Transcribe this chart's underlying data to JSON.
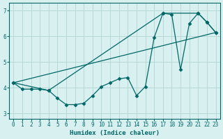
{
  "xlabel": "Humidex (Indice chaleur)",
  "bg_color": "#d8f0f0",
  "grid_color": "#b8d8d8",
  "line_color": "#006666",
  "xlim": [
    -0.5,
    23.5
  ],
  "ylim": [
    2.8,
    7.3
  ],
  "xticks": [
    0,
    1,
    2,
    3,
    4,
    5,
    6,
    7,
    8,
    9,
    10,
    11,
    12,
    13,
    14,
    15,
    16,
    17,
    18,
    19,
    20,
    21,
    22,
    23
  ],
  "yticks": [
    3,
    4,
    5,
    6,
    7
  ],
  "series1_x": [
    0,
    1,
    2,
    3,
    4,
    5,
    6,
    7,
    8,
    9,
    10,
    11,
    12,
    13,
    14,
    15,
    16,
    17,
    18,
    19,
    20,
    21,
    22,
    23
  ],
  "series1_y": [
    4.2,
    3.95,
    3.95,
    3.95,
    3.9,
    3.6,
    3.35,
    3.35,
    3.4,
    3.7,
    4.05,
    4.2,
    4.35,
    4.4,
    3.7,
    4.05,
    5.95,
    6.9,
    6.85,
    4.7,
    6.5,
    6.9,
    6.55,
    6.15
  ],
  "series2_x": [
    0,
    23
  ],
  "series2_y": [
    4.2,
    6.15
  ],
  "series3_x": [
    0,
    4,
    17,
    21,
    22,
    23
  ],
  "series3_y": [
    4.2,
    3.9,
    6.9,
    6.9,
    6.55,
    6.15
  ],
  "marker_size": 2.5
}
